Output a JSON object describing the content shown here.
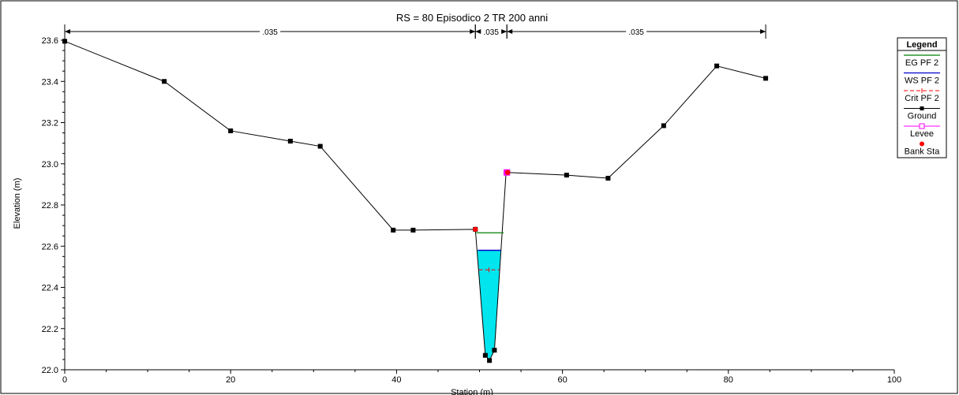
{
  "chart_data": {
    "type": "line",
    "title": "RS = 80  Episodico 2 TR 200 anni",
    "xlabel": "Station (m)",
    "ylabel": "Elevation (m)",
    "xlim": [
      0,
      100
    ],
    "ylim": [
      22.0,
      23.6
    ],
    "x_ticks": [
      0,
      20,
      40,
      60,
      80,
      100
    ],
    "y_ticks": [
      22.0,
      22.2,
      22.4,
      22.6,
      22.8,
      23.0,
      23.2,
      23.4,
      23.6
    ],
    "x_tick_labels": [
      "0",
      "20",
      "40",
      "60",
      "80",
      "100"
    ],
    "y_tick_labels": [
      "22.0",
      "22.2",
      "22.4",
      "22.6",
      "22.8",
      "23.0",
      "23.2",
      "23.4",
      "23.6"
    ],
    "grid": false,
    "legend_placement": "right",
    "manning": [
      {
        "label": ".035",
        "x_start": 0,
        "x_end": 49.5
      },
      {
        "label": ".035",
        "x_start": 49.5,
        "x_end": 53.3
      },
      {
        "label": ".035",
        "x_start": 53.3,
        "x_end": 84.5
      }
    ],
    "legend": {
      "title": "Legend",
      "entries": [
        {
          "name": "EG PF 2",
          "color": "#008000",
          "style": "line"
        },
        {
          "name": "WS PF 2",
          "color": "#0000cc",
          "style": "line"
        },
        {
          "name": "Crit PF 2",
          "color": "#ff0000",
          "style": "dashed-plus"
        },
        {
          "name": "Ground",
          "color": "#000000",
          "style": "line-square"
        },
        {
          "name": "Levee",
          "color": "#ff00ff",
          "style": "line-open-square"
        },
        {
          "name": "Bank Sta",
          "color": "#ff0000",
          "style": "dot"
        }
      ]
    },
    "series": {
      "ground": {
        "x": [
          0,
          12,
          20,
          27.2,
          30.8,
          39.6,
          42,
          49.5,
          50.7,
          51.2,
          51.8,
          53.2,
          53.4,
          60.5,
          65.5,
          72.2,
          78.6,
          84.5
        ],
        "y": [
          23.595,
          23.4,
          23.16,
          23.11,
          23.085,
          22.678,
          22.678,
          22.682,
          22.07,
          22.045,
          22.095,
          22.955,
          22.958,
          22.945,
          22.93,
          23.185,
          23.475,
          23.415
        ]
      },
      "eg": {
        "x": [
          49.6,
          52.9
        ],
        "y": [
          22.665,
          22.665
        ]
      },
      "ws": {
        "x": [
          49.8,
          52.6
        ],
        "y": [
          22.58,
          22.58
        ]
      },
      "crit": {
        "x": [
          49.9,
          52.4
        ],
        "y": [
          22.485,
          22.485
        ]
      },
      "bank_stations": [
        {
          "x": 49.5,
          "y": 22.682
        },
        {
          "x": 53.4,
          "y": 22.958
        }
      ],
      "levee": [
        {
          "x": 53.3,
          "y": 22.958
        }
      ]
    },
    "colors": {
      "water_fill": "#00e5ee",
      "ground_line": "#000000",
      "eg": "#008000",
      "ws": "#0000cc",
      "crit": "#ff0000",
      "bank": "#ff0000",
      "levee": "#ff00ff"
    }
  }
}
